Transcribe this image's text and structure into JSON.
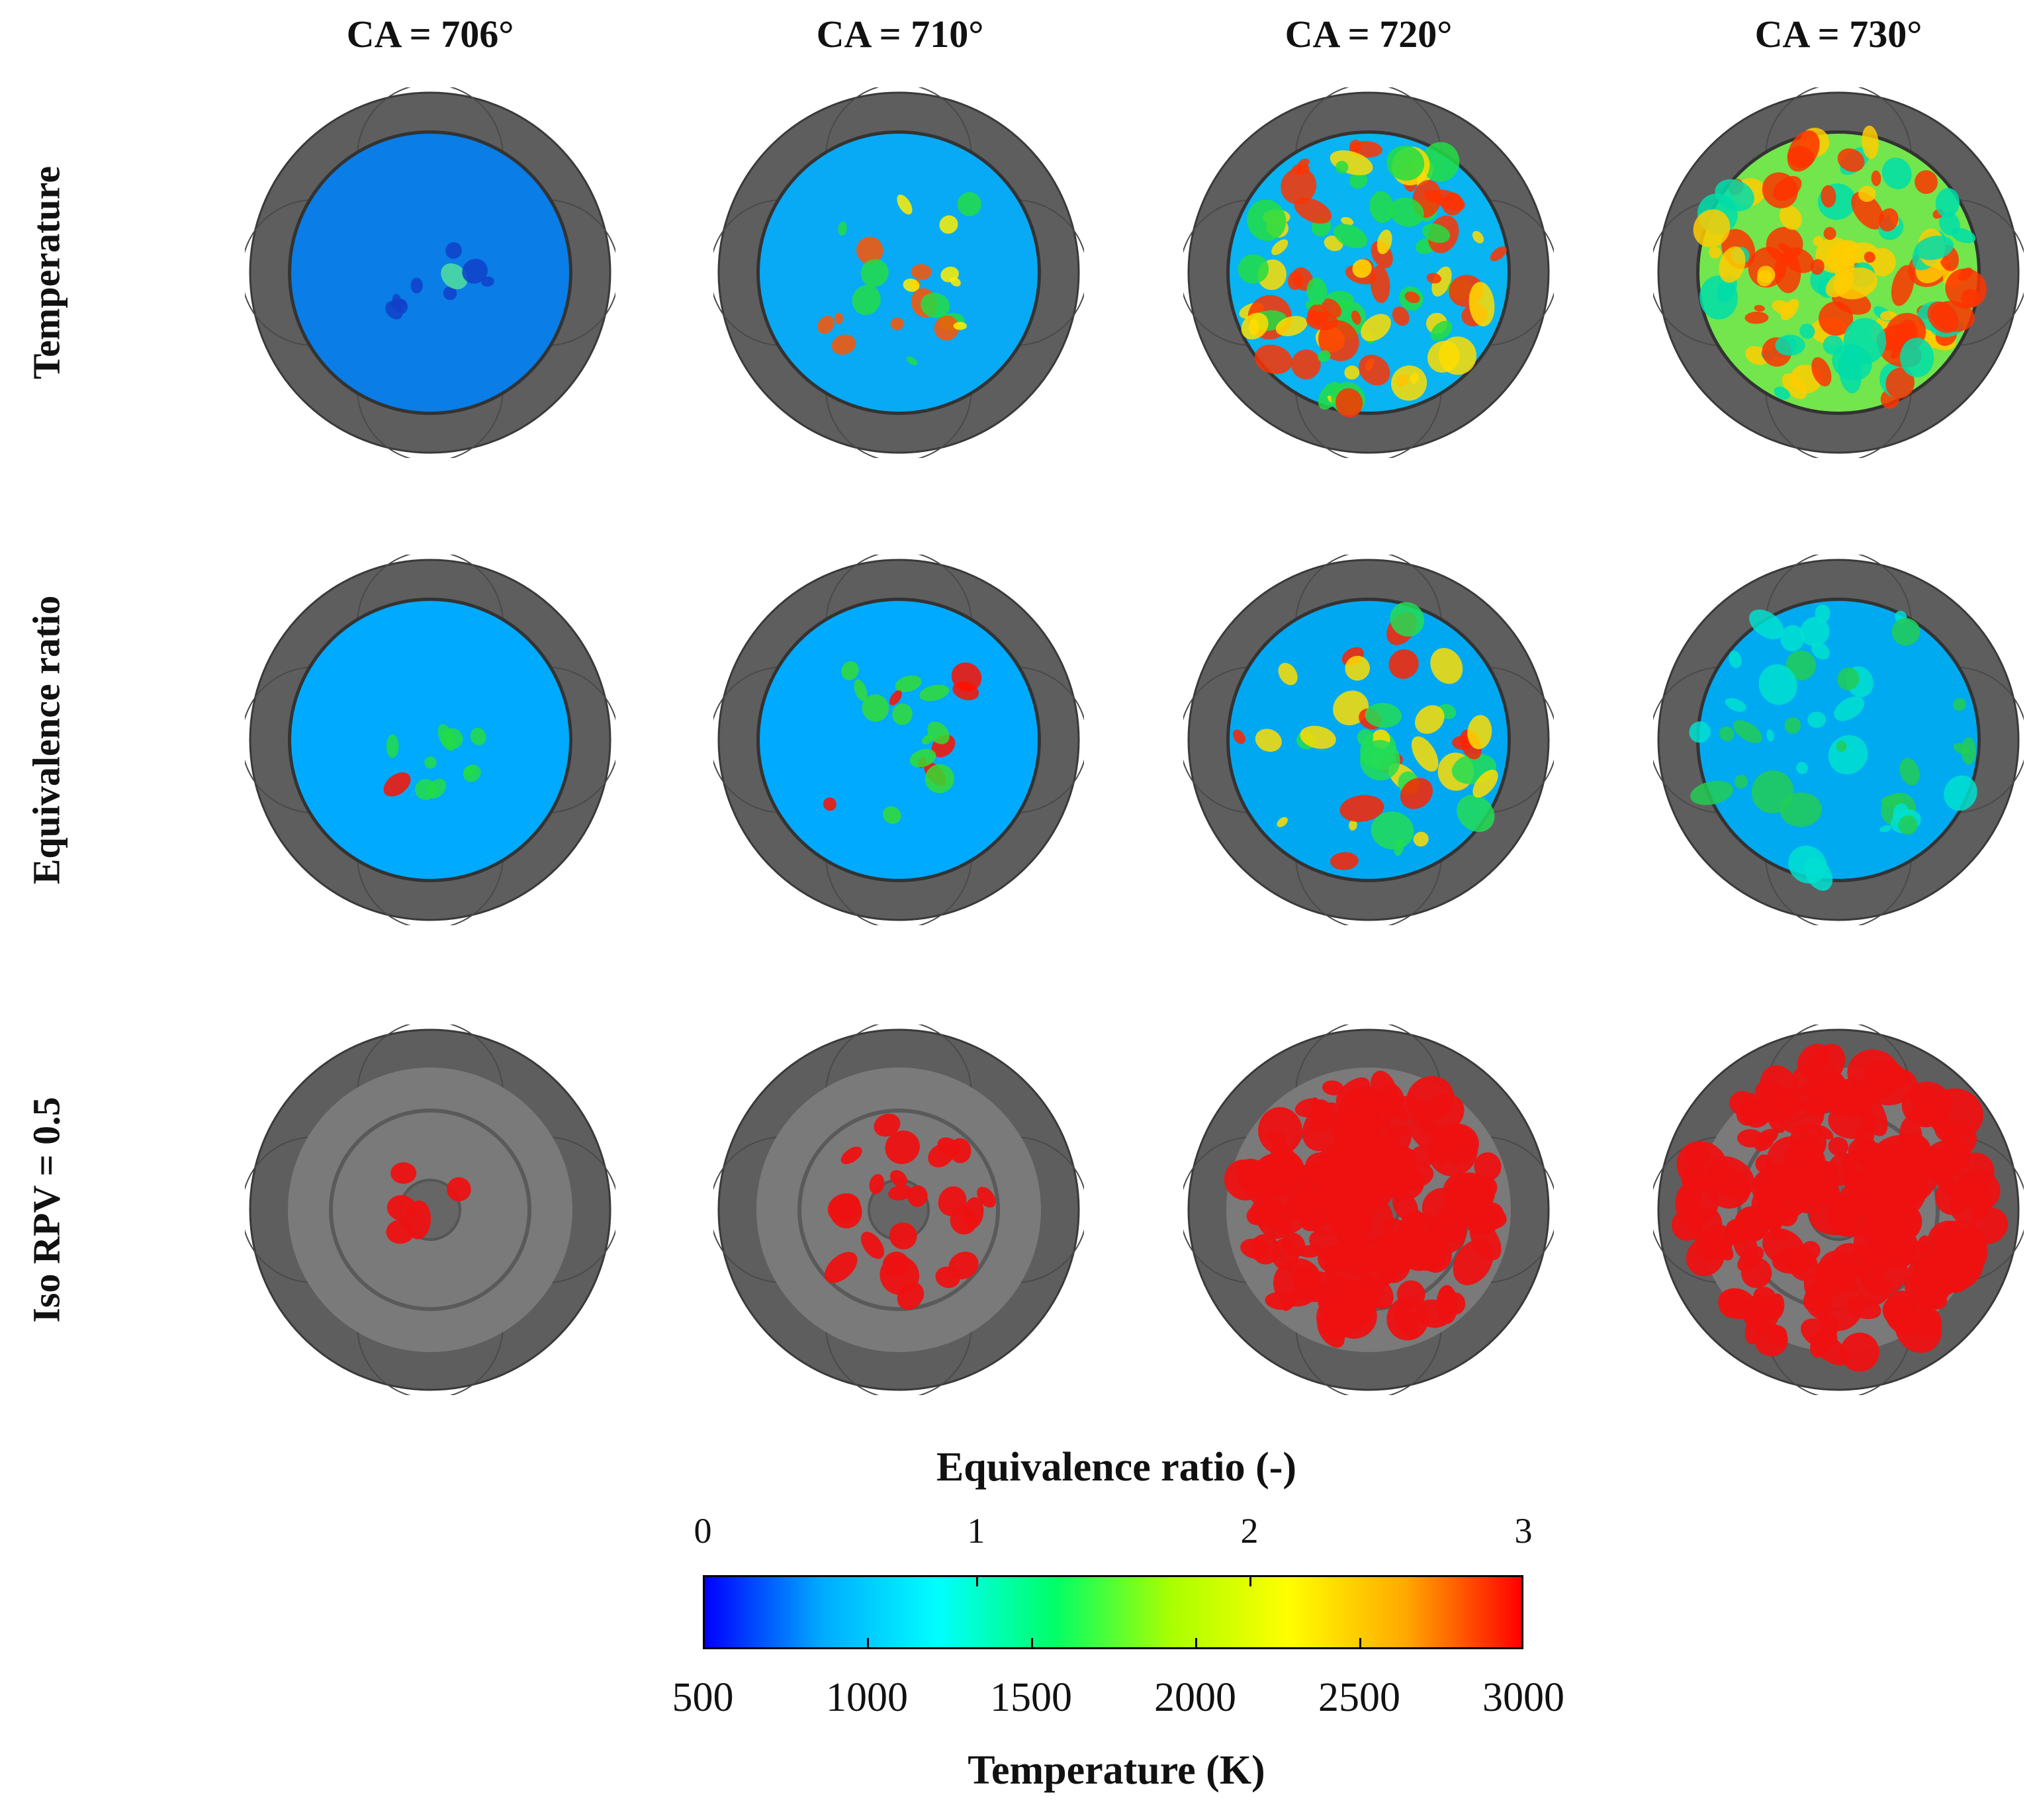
{
  "columns": [
    "CA = 706°",
    "CA = 710°",
    "CA = 720°",
    "CA = 730°"
  ],
  "rows": [
    "Temperature",
    "Equivalence ratio",
    "Iso RPV = 0.5"
  ],
  "colorbar": {
    "top_title": "Equivalence ratio (-)",
    "top_ticks": [
      "0",
      "1",
      "2",
      "3"
    ],
    "bottom_ticks": [
      "500",
      "1000",
      "1500",
      "2000",
      "2500",
      "3000"
    ],
    "bottom_title": "Temperature (K)",
    "colormap": "jet",
    "colors": [
      "#0000ff",
      "#00aaff",
      "#00ffff",
      "#00ff66",
      "#aaff00",
      "#ffff00",
      "#ffaa00",
      "#ff0000"
    ]
  },
  "panel_colors": {
    "piston_rim": "#5e5e5e",
    "piston_bowl_floor": "#7a7a7a",
    "iso_surface": "#ee1111"
  }
}
